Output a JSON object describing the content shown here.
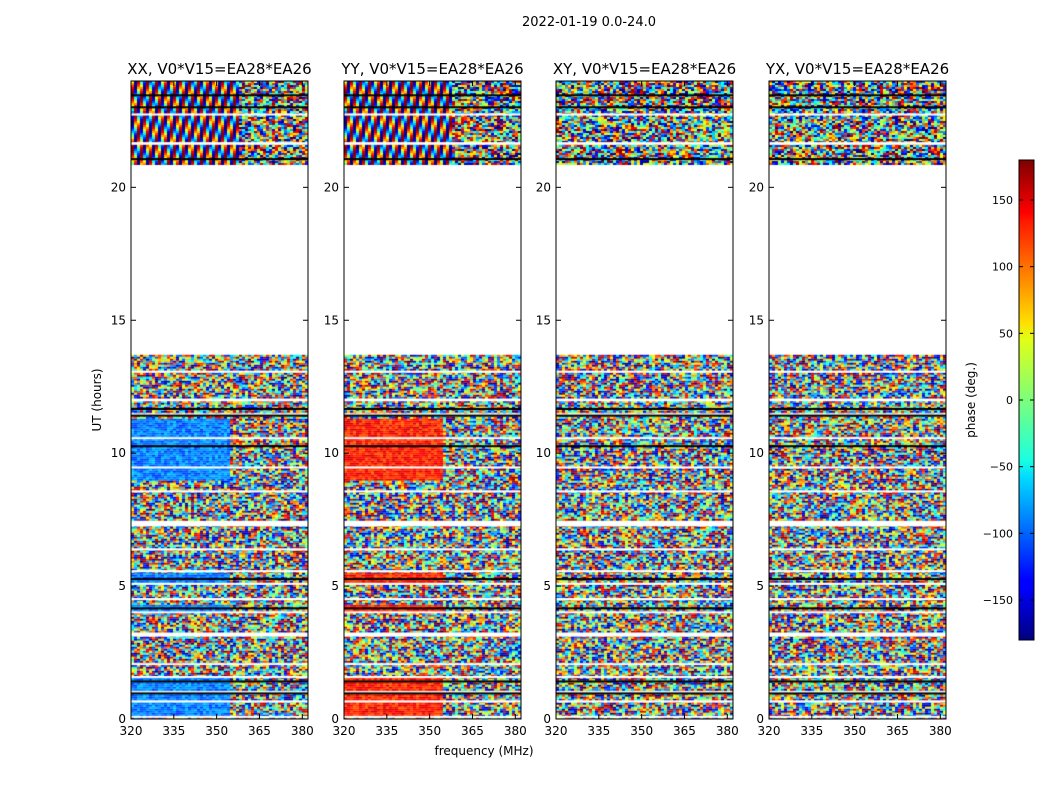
{
  "chart_data": {
    "type": "heatmap",
    "suptitle": "2022-01-19 0.0-24.0",
    "xlabel": "frequency (MHz)",
    "ylabel": "UT (hours)",
    "xlim": [
      320,
      382
    ],
    "ylim": [
      0,
      24
    ],
    "xticks": [
      320,
      335,
      350,
      365,
      380
    ],
    "yticks": [
      0,
      5,
      10,
      15,
      20
    ],
    "colorbar": {
      "label": "phase (deg.)",
      "range": [
        -180,
        180
      ],
      "ticks": [
        150,
        100,
        50,
        0,
        -50,
        -100,
        -150
      ],
      "tick_labels": [
        "150",
        "100",
        "50",
        "0",
        "−50",
        "−100",
        "−150"
      ],
      "colormap": "jet"
    },
    "panels": [
      {
        "title": "XX, V0*V15=EA28*EA26",
        "polarization": "XX",
        "baseline": "V0*V15=EA28*EA26"
      },
      {
        "title": "YY, V0*V15=EA28*EA26",
        "polarization": "YY",
        "baseline": "V0*V15=EA28*EA26"
      },
      {
        "title": "XY, V0*V15=EA28*EA26",
        "polarization": "XY",
        "baseline": "V0*V15=EA28*EA26"
      },
      {
        "title": "YX, V0*V15=EA28*EA26",
        "polarization": "YX",
        "baseline": "V0*V15=EA28*EA26"
      }
    ],
    "data_coverage_hours": [
      [
        0.0,
        13.7
      ],
      [
        20.9,
        24.0
      ]
    ],
    "gap_hours": [
      [
        13.7,
        20.9
      ]
    ]
  }
}
